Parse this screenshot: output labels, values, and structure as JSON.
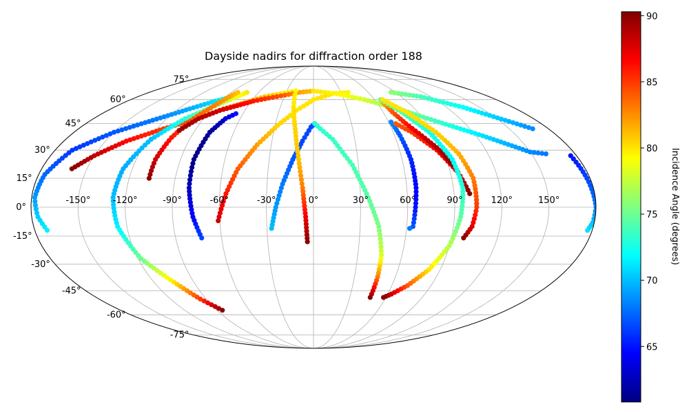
{
  "chart_data": {
    "type": "scatter",
    "projection": "mollweide",
    "title": "Dayside nadirs for diffraction order 188",
    "longitude_ticks": [
      -150,
      -120,
      -90,
      -60,
      -30,
      0,
      30,
      60,
      90,
      120,
      150
    ],
    "longitude_tick_labels": [
      "-150°",
      "-120°",
      "-90°",
      "-60°",
      "-30°",
      "0°",
      "30°",
      "60°",
      "90°",
      "120°",
      "150°"
    ],
    "latitude_ticks": [
      75,
      60,
      45,
      30,
      15,
      0,
      -15,
      -30,
      -45,
      -60,
      -75
    ],
    "latitude_tick_labels": [
      "75°",
      "60°",
      "45°",
      "30°",
      "15°",
      "0°",
      "-15°",
      "-30°",
      "-45°",
      "-60°",
      "-75°"
    ],
    "grid": true,
    "colormap": "jet",
    "colorbar": {
      "label": "Incidence Angle (degrees)",
      "range": [
        60.8,
        90.3
      ],
      "ticks": [
        65,
        70,
        75,
        80,
        85,
        90
      ],
      "tick_labels": [
        "65",
        "70",
        "75",
        "80",
        "85",
        "90"
      ]
    },
    "series": [
      {
        "points": [
          [
            -172,
            -12,
            71.5
          ],
          [
            -176,
            -5,
            70.5
          ],
          [
            -178,
            5,
            69
          ],
          [
            -176,
            17,
            67.5
          ],
          [
            -168,
            30,
            66
          ],
          [
            -150,
            40,
            67
          ],
          [
            -130,
            47,
            68
          ],
          [
            -110,
            54,
            69.5
          ],
          [
            -95,
            59,
            71
          ],
          [
            -83,
            62,
            73
          ],
          [
            -78,
            63,
            74
          ]
        ]
      },
      {
        "points": [
          [
            -160,
            20,
            90
          ],
          [
            -150,
            27,
            88.5
          ],
          [
            -135,
            35,
            86.5
          ],
          [
            -115,
            42,
            85
          ],
          [
            -95,
            48,
            84
          ],
          [
            -80,
            54,
            83
          ],
          [
            -65,
            58,
            82
          ],
          [
            -50,
            62,
            81
          ],
          [
            -35,
            64,
            80
          ],
          [
            -20,
            66,
            79.5
          ]
        ]
      },
      {
        "points": [
          [
            -73,
            65,
            80
          ],
          [
            -78,
            62,
            79
          ],
          [
            -90,
            56,
            76
          ],
          [
            -105,
            48,
            73
          ],
          [
            -118,
            36,
            70
          ],
          [
            -126,
            20,
            69.5
          ],
          [
            -128,
            5,
            70
          ],
          [
            -126,
            -10,
            71.5
          ],
          [
            -118,
            -27,
            75
          ],
          [
            -105,
            -40,
            80
          ],
          [
            -95,
            -50,
            85
          ],
          [
            -85,
            -57,
            90
          ]
        ]
      },
      {
        "points": [
          [
            -107,
            15,
            90
          ],
          [
            -107,
            25,
            88
          ],
          [
            -104,
            37,
            86
          ],
          [
            -98,
            48,
            84
          ],
          [
            -91,
            56,
            83
          ],
          [
            -86,
            62,
            82
          ],
          [
            -83,
            65,
            81
          ]
        ]
      },
      {
        "points": [
          [
            -102,
            41,
            89.5
          ],
          [
            -94,
            48,
            89
          ],
          [
            -82,
            53,
            88
          ],
          [
            -70,
            56,
            87
          ],
          [
            -58,
            59,
            86
          ],
          [
            -45,
            61,
            85
          ],
          [
            -30,
            63,
            84
          ],
          [
            -15,
            65,
            82
          ],
          [
            0,
            66,
            81
          ]
        ]
      },
      {
        "points": [
          [
            -73,
            -16,
            66.5
          ],
          [
            -77,
            -5,
            64.5
          ],
          [
            -80,
            10,
            62.5
          ],
          [
            -81,
            25,
            61
          ],
          [
            -78,
            40,
            61.5
          ],
          [
            -72,
            48,
            63
          ],
          [
            -66,
            51,
            65
          ]
        ]
      },
      {
        "points": [
          [
            -61,
            -7,
            88
          ],
          [
            -56,
            7,
            86
          ],
          [
            -50,
            20,
            84
          ],
          [
            -40,
            33,
            82
          ],
          [
            -28,
            44,
            80.5
          ],
          [
            -15,
            53,
            80
          ],
          [
            0,
            60,
            80
          ],
          [
            20,
            64,
            80
          ],
          [
            38,
            65,
            79.5
          ]
        ]
      },
      {
        "points": [
          [
            -27,
            -11,
            70
          ],
          [
            -24,
            0,
            69
          ],
          [
            -20,
            12,
            68
          ],
          [
            -14,
            25,
            67
          ],
          [
            -8,
            35,
            66.5
          ],
          [
            -2,
            43,
            66.5
          ],
          [
            1,
            45,
            67
          ]
        ]
      },
      {
        "points": [
          [
            -20,
            66,
            79.5
          ],
          [
            -18,
            55,
            80
          ],
          [
            -14,
            42,
            80.5
          ],
          [
            -10,
            25,
            81
          ],
          [
            -7,
            10,
            83
          ],
          [
            -5,
            -5,
            87
          ],
          [
            -4,
            -18,
            90
          ]
        ]
      },
      {
        "points": [
          [
            1,
            45,
            73
          ],
          [
            14,
            36,
            73.5
          ],
          [
            26,
            22,
            74
          ],
          [
            35,
            5,
            74.5
          ],
          [
            42,
            -10,
            75.5
          ],
          [
            46,
            -25,
            78
          ],
          [
            47,
            -37,
            83
          ],
          [
            47,
            -49,
            90
          ]
        ]
      },
      {
        "points": [
          [
            0,
            66,
            80
          ],
          [
            25,
            64,
            79.5
          ],
          [
            50,
            60,
            78
          ],
          [
            75,
            54,
            76
          ],
          [
            100,
            46,
            73.5
          ],
          [
            125,
            38,
            71
          ],
          [
            150,
            29,
            68.5
          ],
          [
            160,
            28,
            68
          ]
        ]
      },
      {
        "points": [
          [
            62,
            46,
            68.5
          ],
          [
            64,
            38,
            67
          ],
          [
            66,
            25,
            65.5
          ],
          [
            66,
            10,
            64.5
          ],
          [
            65,
            0,
            65
          ],
          [
            64,
            -10,
            67
          ],
          [
            62,
            -11,
            68
          ]
        ]
      },
      {
        "points": [
          [
            65,
            45,
            84
          ],
          [
            74,
            40,
            85
          ],
          [
            86,
            30,
            86.5
          ],
          [
            95,
            18,
            88
          ],
          [
            100,
            7,
            90
          ]
        ]
      },
      {
        "points": [
          [
            66,
            58,
            82
          ],
          [
            68,
            52,
            84
          ],
          [
            73,
            45,
            86
          ],
          [
            80,
            38,
            88
          ],
          [
            88,
            30,
            89
          ],
          [
            93,
            22,
            90
          ]
        ]
      },
      {
        "points": [
          [
            66,
            60,
            75
          ],
          [
            76,
            52,
            74
          ],
          [
            87,
            40,
            72.5
          ],
          [
            94,
            25,
            72
          ],
          [
            96,
            10,
            73
          ],
          [
            94,
            -5,
            74.5
          ],
          [
            90,
            -20,
            77
          ],
          [
            82,
            -33,
            80
          ],
          [
            72,
            -42,
            84
          ],
          [
            63,
            -47,
            88
          ],
          [
            58,
            -49,
            90
          ]
        ]
      },
      {
        "points": [
          [
            68,
            60,
            80
          ],
          [
            80,
            52,
            80
          ],
          [
            92,
            40,
            80.5
          ],
          [
            100,
            28,
            81.5
          ],
          [
            104,
            15,
            83
          ],
          [
            104,
            0,
            85
          ],
          [
            102,
            -10,
            87.5
          ],
          [
            98,
            -16,
            90
          ]
        ]
      },
      {
        "points": [
          [
            85,
            65,
            76
          ],
          [
            110,
            62,
            74
          ],
          [
            135,
            55,
            72
          ],
          [
            155,
            47,
            70
          ],
          [
            168,
            42,
            68.5
          ]
        ]
      },
      {
        "points": [
          [
            176,
            27,
            65
          ],
          [
            178,
            15,
            66.5
          ],
          [
            180,
            0,
            68
          ],
          [
            179,
            -8,
            70
          ],
          [
            177,
            -12,
            71
          ]
        ]
      }
    ]
  }
}
